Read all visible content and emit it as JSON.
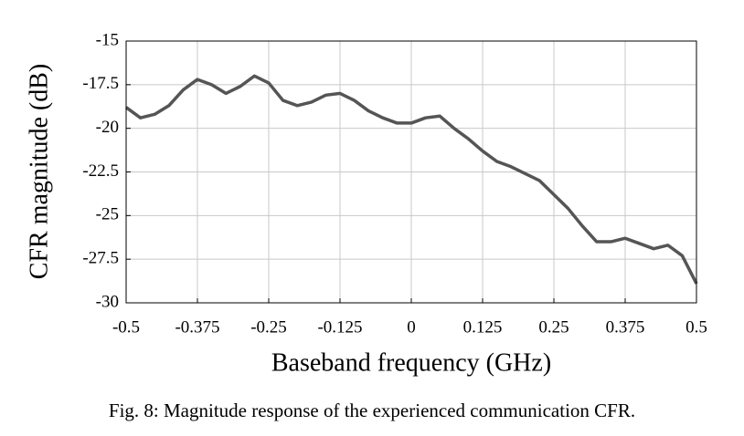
{
  "chart_data": {
    "type": "line",
    "xlabel": "Baseband frequency (GHz)",
    "ylabel": "CFR magnitude (dB)",
    "caption": "Fig. 8: Magnitude response of the experienced communication CFR.",
    "x": [
      -0.5,
      -0.475,
      -0.45,
      -0.425,
      -0.4,
      -0.375,
      -0.35,
      -0.325,
      -0.3,
      -0.275,
      -0.25,
      -0.225,
      -0.2,
      -0.175,
      -0.15,
      -0.125,
      -0.1,
      -0.075,
      -0.05,
      -0.025,
      0,
      0.025,
      0.05,
      0.075,
      0.1,
      0.125,
      0.15,
      0.175,
      0.2,
      0.225,
      0.25,
      0.275,
      0.3,
      0.325,
      0.35,
      0.375,
      0.4,
      0.425,
      0.45,
      0.475,
      0.5
    ],
    "series": [
      {
        "color": "#555555",
        "values": [
          -18.8,
          -19.4,
          -19.2,
          -18.7,
          -17.8,
          -17.2,
          -17.5,
          -18.0,
          -17.6,
          -17.0,
          -17.4,
          -18.4,
          -18.7,
          -18.5,
          -18.1,
          -18.0,
          -18.4,
          -19.0,
          -19.4,
          -19.7,
          -19.7,
          -19.4,
          -19.3,
          -20.0,
          -20.6,
          -21.3,
          -21.9,
          -22.2,
          -22.6,
          -23.0,
          -23.8,
          -24.6,
          -25.6,
          -26.5,
          -26.5,
          -26.3,
          -26.6,
          -26.9,
          -26.7,
          -27.3,
          -28.9
        ]
      }
    ],
    "xlim": [
      -0.5,
      0.5
    ],
    "xticks": [
      -0.5,
      -0.375,
      -0.25,
      -0.125,
      0,
      0.125,
      0.25,
      0.375,
      0.5
    ],
    "ylim": [
      -30,
      -15
    ],
    "yticks": [
      -15,
      -17.5,
      -20,
      -22.5,
      -25,
      -27.5,
      -30
    ],
    "grid": true
  }
}
